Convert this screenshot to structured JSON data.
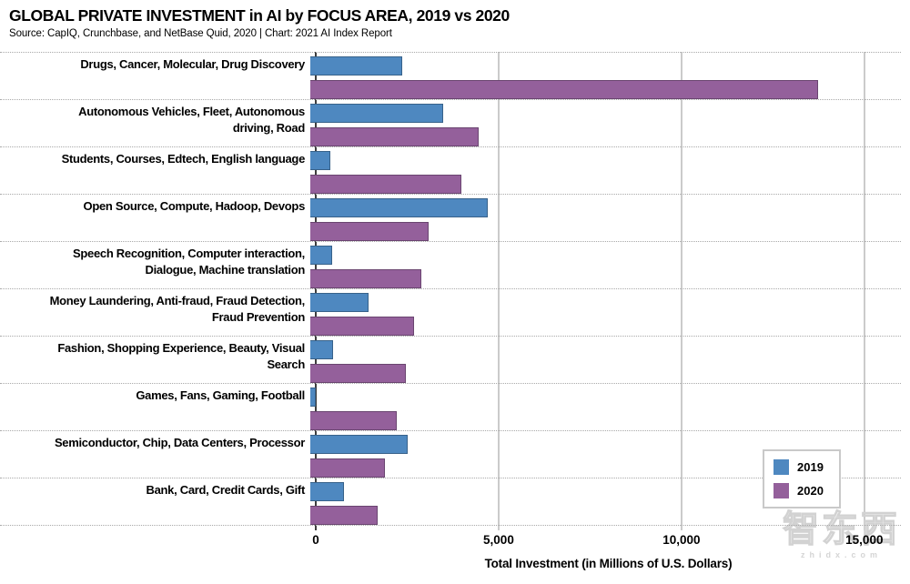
{
  "header": {
    "title": "GLOBAL PRIVATE INVESTMENT in AI by FOCUS AREA, 2019 vs 2020",
    "source": "Source: CapIQ, Crunchbase, and NetBase Quid, 2020 | Chart: 2021 AI Index Report"
  },
  "chart_data": {
    "type": "bar",
    "orientation": "horizontal",
    "title": "GLOBAL PRIVATE INVESTMENT in AI by FOCUS AREA, 2019 vs 2020",
    "subtitle": "Source: CapIQ, Crunchbase, and NetBase Quid, 2020 | Chart: 2021 AI Index Report",
    "categories": [
      "Drugs, Cancer, Molecular, Drug Discovery",
      "Autonomous Vehicles, Fleet, Autonomous\ndriving, Road",
      "Students, Courses, Edtech, English language",
      "Open Source, Compute, Hadoop, Devops",
      "Speech Recognition, Computer interaction,\nDialogue, Machine translation",
      "Money Laundering, Anti-fraud, Fraud Detection,\nFraud Prevention",
      "Fashion, Shopping Experience, Beauty, Visual\nSearch",
      "Games, Fans, Gaming, Football",
      "Semiconductor, Chip, Data Centers, Processor",
      "Bank, Card, Credit Cards, Gift"
    ],
    "series": [
      {
        "name": "2019",
        "color": "#4E88C0",
        "values": [
          2500,
          3600,
          550,
          4800,
          600,
          1570,
          620,
          150,
          2650,
          920
        ]
      },
      {
        "name": "2020",
        "color": "#94609B",
        "values": [
          13750,
          4550,
          4100,
          3200,
          3000,
          2800,
          2600,
          2340,
          2020,
          1820
        ]
      }
    ],
    "xlabel": "Total Investment (in Millions of U.S. Dollars)",
    "ylabel": "",
    "xlim": [
      0,
      16000
    ],
    "gridlines": [
      5000,
      10000,
      15000
    ],
    "grid": "vertical-solid, dotted horizontal row separators",
    "ticks": [
      {
        "value": 0,
        "label": "0"
      },
      {
        "value": 5000,
        "label": "5,000"
      },
      {
        "value": 10000,
        "label": "10,000"
      },
      {
        "value": 15000,
        "label": "15,000"
      }
    ],
    "legend_position": "inside-bottom-right"
  },
  "legend": {
    "items": [
      {
        "label": "2019",
        "color": "#4E88C0"
      },
      {
        "label": "2020",
        "color": "#94609B"
      }
    ]
  },
  "watermark": {
    "logo": "智东西",
    "url": "zhidx.com"
  }
}
